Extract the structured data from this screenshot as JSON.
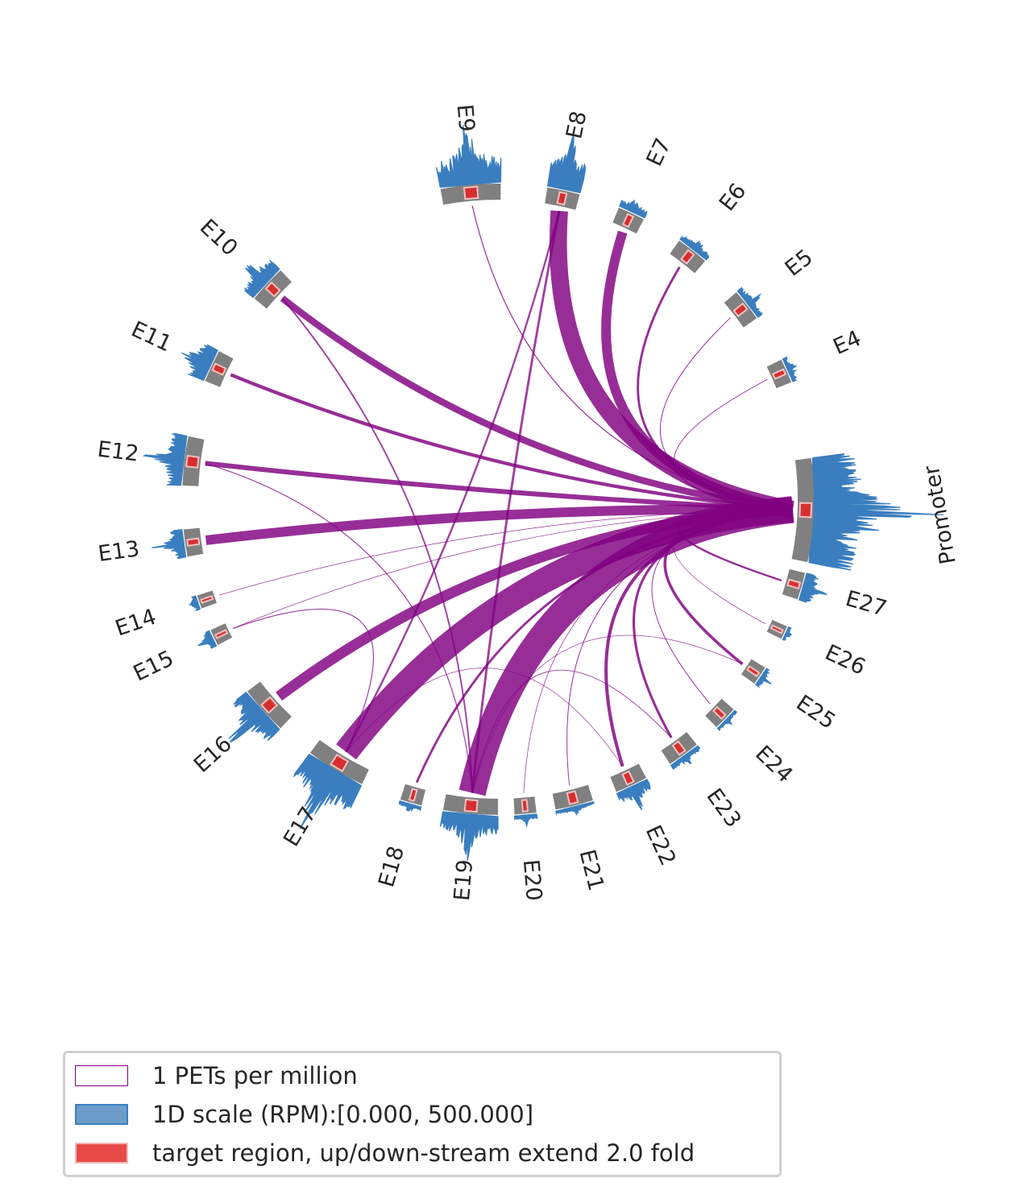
{
  "chart_data": {
    "type": "chord",
    "title": "",
    "segments": [
      {
        "name": "Promoter",
        "signal": 0.75,
        "loop": null
      },
      {
        "name": "E27",
        "signal": 0.22,
        "loop": 1.0
      },
      {
        "name": "E26",
        "signal": 0.05,
        "loop": 0.3
      },
      {
        "name": "E25",
        "signal": 0.08,
        "loop": 1.5
      },
      {
        "name": "E24",
        "signal": 0.05,
        "loop": 0.4
      },
      {
        "name": "E23",
        "signal": 0.08,
        "loop": 1.3
      },
      {
        "name": "E22",
        "signal": 0.18,
        "loop": 1.7
      },
      {
        "name": "E21",
        "signal": 0.05,
        "loop": 0.4
      },
      {
        "name": "E20",
        "signal": 0.08,
        "loop": 0.3
      },
      {
        "name": "E19",
        "signal": 0.32,
        "loop": 14.0
      },
      {
        "name": "E18",
        "signal": 0.07,
        "loop": 1.2
      },
      {
        "name": "E17",
        "signal": 0.5,
        "loop": 13.0
      },
      {
        "name": "E16",
        "signal": 0.3,
        "loop": 5.5
      },
      {
        "name": "E15",
        "signal": 0.12,
        "loop": 0.3
      },
      {
        "name": "E14",
        "signal": 0.08,
        "loop": 0.3
      },
      {
        "name": "E13",
        "signal": 0.2,
        "loop": 5.0
      },
      {
        "name": "E12",
        "signal": 0.25,
        "loop": 2.5
      },
      {
        "name": "E11",
        "signal": 0.3,
        "loop": 1.8
      },
      {
        "name": "E10",
        "signal": 0.22,
        "loop": 3.5
      },
      {
        "name": "E9",
        "signal": 0.45,
        "loop": 0.5
      },
      {
        "name": "E8",
        "signal": 0.5,
        "loop": 9.0
      },
      {
        "name": "E7",
        "signal": 0.12,
        "loop": 5.0
      },
      {
        "name": "E6",
        "signal": 0.1,
        "loop": 1.2
      },
      {
        "name": "E5",
        "signal": 0.1,
        "loop": 0.4
      },
      {
        "name": "E4",
        "signal": 0.08,
        "loop": 0.4
      }
    ],
    "legend": [
      {
        "label": "1 PETs per million",
        "color": "#800080",
        "style": "outline"
      },
      {
        "label": "1D scale (RPM):[0.000, 500.000]",
        "color": "#3a7ebf",
        "style": "fill"
      },
      {
        "label": "target region, up/down-stream extend 2.0 fold",
        "color": "#e84a4a",
        "style": "fill"
      }
    ]
  },
  "colors": {
    "segment": "#808080",
    "target": "#d62f2f",
    "coverage": "#3a7ebf",
    "loop": "#800080"
  }
}
